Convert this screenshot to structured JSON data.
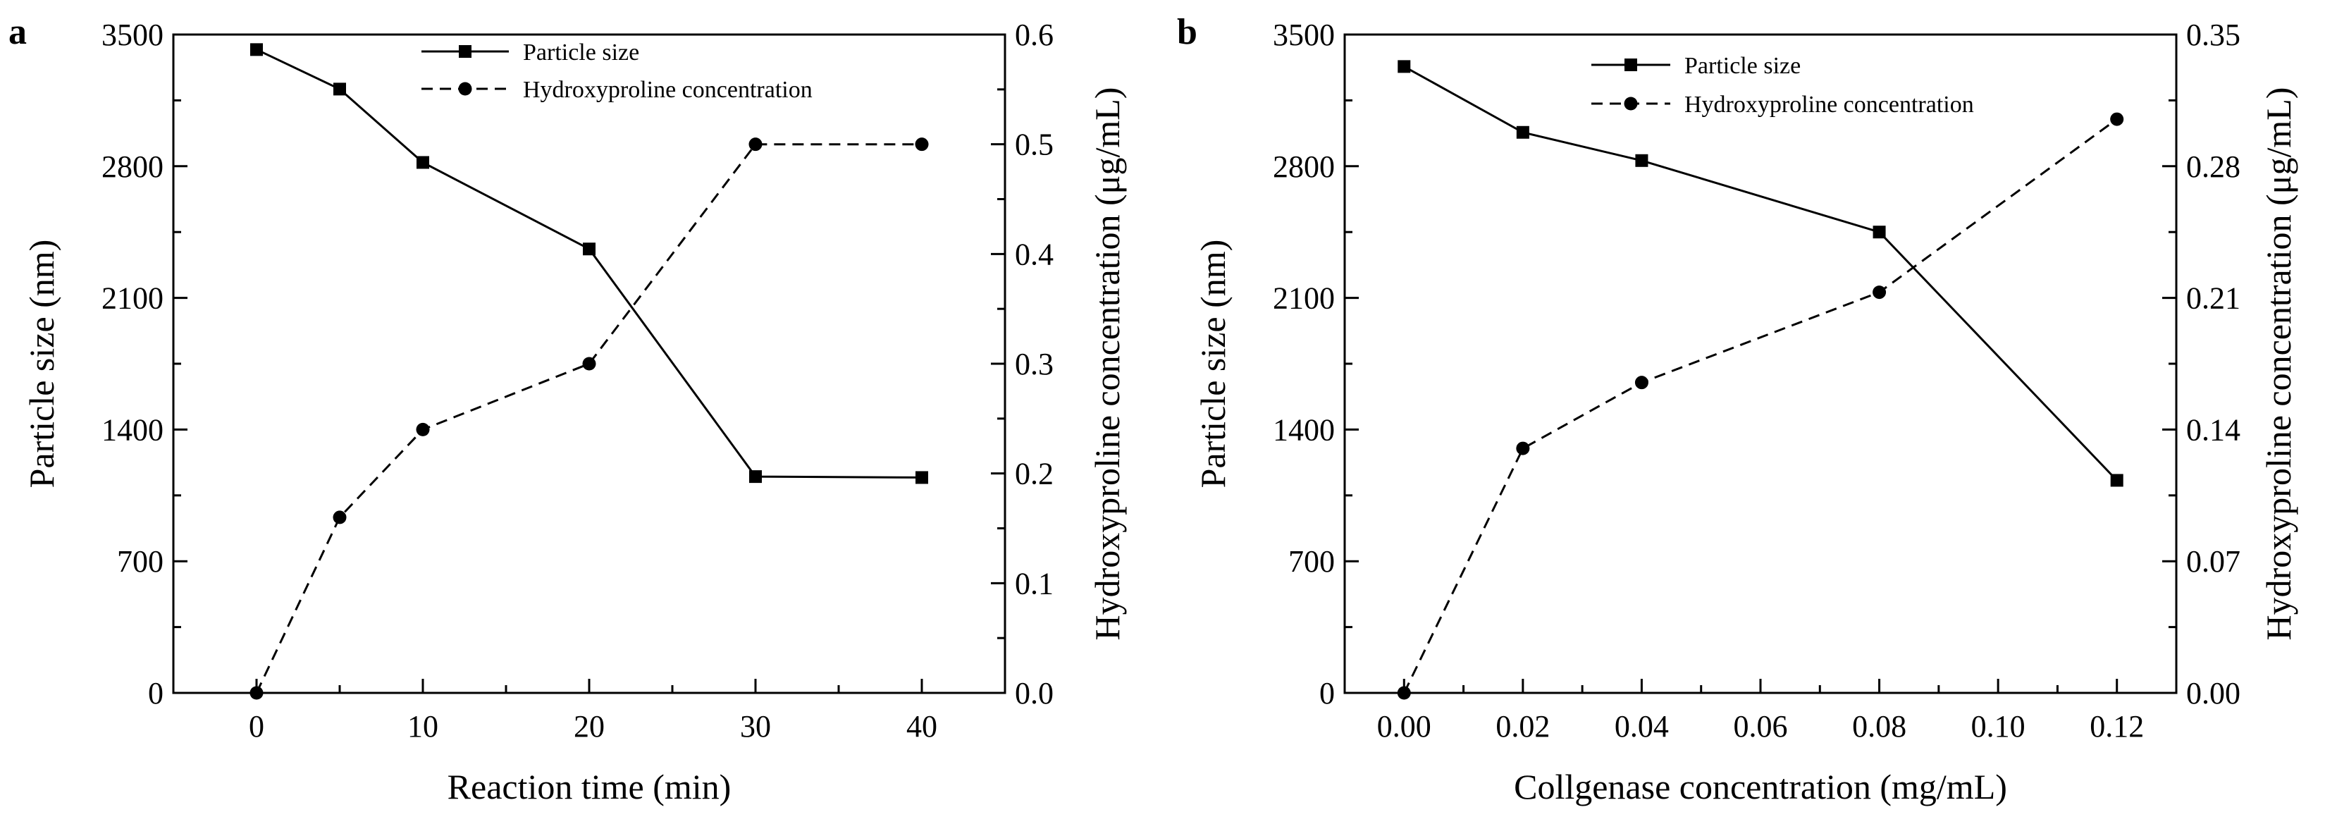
{
  "chart_data": [
    {
      "type": "line",
      "panel_label": "a",
      "xlabel": "Reaction time (min)",
      "ylabel_left": "Particle size (nm)",
      "ylabel_right": "Hydroxyproline concentration (μg/mL)",
      "xlim": [
        -5,
        45
      ],
      "xticks": [
        0,
        10,
        20,
        30,
        40
      ],
      "xtick_labels": [
        "0",
        "10",
        "20",
        "30",
        "40"
      ],
      "ylim_left": [
        0,
        3500
      ],
      "yticks_left": [
        0,
        700,
        1400,
        2100,
        2800,
        3500
      ],
      "ytick_labels_left": [
        "0",
        "700",
        "1400",
        "2100",
        "2800",
        "3500"
      ],
      "ylim_right": [
        0,
        0.6
      ],
      "yticks_right": [
        0,
        0.1,
        0.2,
        0.3,
        0.4,
        0.5,
        0.6
      ],
      "ytick_labels_right": [
        "0.0",
        "0.1",
        "0.2",
        "0.3",
        "0.4",
        "0.5",
        "0.6"
      ],
      "legend_position": "top-center",
      "grid": false,
      "series": [
        {
          "name": "Particle size",
          "axis": "left",
          "marker": "square",
          "line": "solid",
          "x": [
            0,
            5,
            10,
            20,
            30,
            40
          ],
          "values": [
            3420,
            3210,
            2820,
            2360,
            1150,
            1145
          ]
        },
        {
          "name": "Hydroxyproline concentration",
          "axis": "right",
          "marker": "circle",
          "line": "dashed",
          "x": [
            0,
            5,
            10,
            20,
            30,
            40
          ],
          "values": [
            0.0,
            0.16,
            0.24,
            0.3,
            0.5,
            0.5
          ]
        }
      ]
    },
    {
      "type": "line",
      "panel_label": "b",
      "xlabel": "Collgenase concentration (mg/mL)",
      "ylabel_left": "Particle size (nm)",
      "ylabel_right": "Hydroxyproline concentration (μg/mL)",
      "xlim": [
        -0.01,
        0.13
      ],
      "xticks": [
        0.0,
        0.02,
        0.04,
        0.06,
        0.08,
        0.1,
        0.12
      ],
      "xtick_labels": [
        "0.00",
        "0.02",
        "0.04",
        "0.06",
        "0.08",
        "0.10",
        "0.12"
      ],
      "ylim_left": [
        0,
        3500
      ],
      "yticks_left": [
        0,
        700,
        1400,
        2100,
        2800,
        3500
      ],
      "ytick_labels_left": [
        "0",
        "700",
        "1400",
        "2100",
        "2800",
        "3500"
      ],
      "ylim_right": [
        0,
        0.35
      ],
      "yticks_right": [
        0,
        0.07,
        0.14,
        0.21,
        0.28,
        0.35
      ],
      "ytick_labels_right": [
        "0.00",
        "0.07",
        "0.14",
        "0.21",
        "0.28",
        "0.35"
      ],
      "legend_position": "top-center",
      "grid": false,
      "series": [
        {
          "name": "Particle size",
          "axis": "left",
          "marker": "square",
          "line": "solid",
          "x": [
            0.0,
            0.02,
            0.04,
            0.08,
            0.12
          ],
          "values": [
            3330,
            2980,
            2830,
            2450,
            1130
          ]
        },
        {
          "name": "Hydroxyproline concentration",
          "axis": "right",
          "marker": "circle",
          "line": "dashed",
          "x": [
            0.0,
            0.02,
            0.04,
            0.08,
            0.12
          ],
          "values": [
            0.0,
            0.13,
            0.165,
            0.213,
            0.305
          ]
        }
      ]
    }
  ]
}
